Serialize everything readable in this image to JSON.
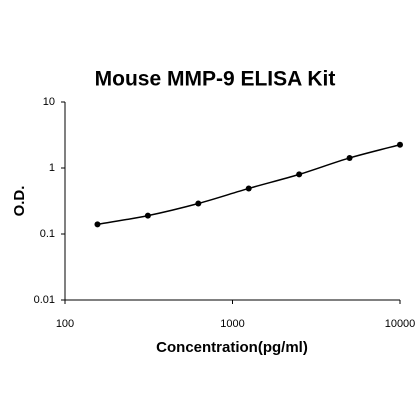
{
  "chart_data": {
    "type": "scatter",
    "title": "Mouse MMP-9 ELISA Kit",
    "x_label": "Concentration(pg/ml)",
    "y_label": "O.D.",
    "x": [
      156.25,
      312.5,
      625,
      1250,
      2500,
      5000,
      10000
    ],
    "values": [
      0.14,
      0.19,
      0.29,
      0.49,
      0.8,
      1.42,
      2.25
    ],
    "color": "#000000",
    "xlog": true,
    "ylog": true,
    "xlim": [
      100,
      10000
    ],
    "xticks": [
      100,
      1000,
      10000
    ],
    "ylim": [
      0.01,
      10
    ],
    "yticks": [
      0.01,
      0.1,
      1,
      10
    ],
    "grid": false
  }
}
